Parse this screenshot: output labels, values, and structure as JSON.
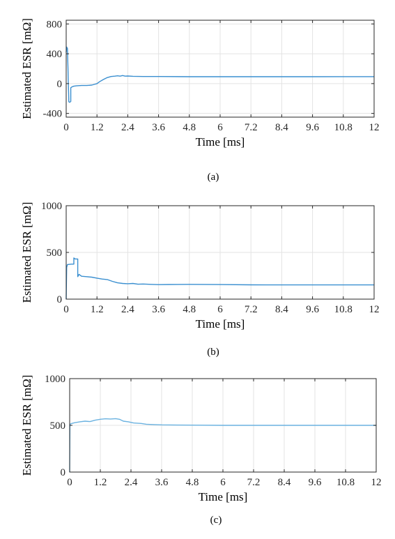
{
  "chart_data": [
    {
      "type": "line",
      "caption": "(a)",
      "xlabel": "Time [ms]",
      "ylabel": "Estimated ESR [mΩ]",
      "xlim": [
        0,
        12
      ],
      "ylim": [
        -450,
        850
      ],
      "xticks": [
        0,
        1.2,
        2.4,
        3.6,
        4.8,
        6,
        7.2,
        8.4,
        9.6,
        10.8,
        12
      ],
      "xtick_labels": [
        "0",
        "1.2",
        "2.4",
        "3.6",
        "4.8",
        "6",
        "7.2",
        "8.4",
        "9.6",
        "10.8",
        "12"
      ],
      "yticks": [
        -400,
        0,
        400,
        800
      ],
      "ytick_labels": [
        "-400",
        "0",
        "400",
        "800"
      ],
      "grid": true,
      "series": [
        {
          "color": "#3a8fd0",
          "x": [
            0,
            0.02,
            0.05,
            0.07,
            0.08,
            0.1,
            0.1,
            0.12,
            0.14,
            0.18,
            0.18,
            0.22,
            0.25,
            0.3,
            0.4,
            0.6,
            0.8,
            1.0,
            1.1,
            1.2,
            1.3,
            1.45,
            1.6,
            1.75,
            1.9,
            2.0,
            2.1,
            2.2,
            2.3,
            2.4,
            2.6,
            3.0,
            3.6,
            4.8,
            6,
            7.2,
            8.4,
            9.6,
            10.8,
            12
          ],
          "y": [
            420,
            490,
            470,
            200,
            60,
            -200,
            -240,
            -250,
            -250,
            -240,
            -55,
            -45,
            -40,
            -35,
            -30,
            -25,
            -25,
            -20,
            -10,
            0,
            25,
            55,
            80,
            95,
            100,
            105,
            100,
            108,
            100,
            102,
            98,
            95,
            95,
            92,
            92,
            92,
            92,
            92,
            93,
            93
          ]
        }
      ]
    },
    {
      "type": "line",
      "caption": "(b)",
      "xlabel": "Time [ms]",
      "ylabel": "Estimated ESR [mΩ]",
      "xlim": [
        0,
        12
      ],
      "ylim": [
        0,
        1000
      ],
      "xticks": [
        0,
        1.2,
        2.4,
        3.6,
        4.8,
        6,
        7.2,
        8.4,
        9.6,
        10.8,
        12
      ],
      "xtick_labels": [
        "0",
        "1.2",
        "2.4",
        "3.6",
        "4.8",
        "6",
        "7.2",
        "8.4",
        "9.6",
        "10.8",
        "12"
      ],
      "yticks": [
        0,
        500,
        1000
      ],
      "ytick_labels": [
        "0",
        "500",
        "1000"
      ],
      "grid": true,
      "series": [
        {
          "color": "#3a8fd0",
          "x": [
            0,
            0.02,
            0.05,
            0.2,
            0.3,
            0.3,
            0.35,
            0.45,
            0.45,
            0.5,
            0.55,
            0.6,
            0.8,
            1.0,
            1.2,
            1.4,
            1.6,
            1.8,
            2.0,
            2.2,
            2.4,
            2.6,
            2.8,
            3.0,
            3.3,
            3.6,
            4.0,
            4.8,
            6,
            7.2,
            8.4,
            9.6,
            10.8,
            12
          ],
          "y": [
            0,
            340,
            370,
            375,
            375,
            440,
            430,
            430,
            240,
            265,
            255,
            245,
            240,
            235,
            225,
            215,
            210,
            190,
            175,
            168,
            165,
            168,
            160,
            162,
            158,
            155,
            157,
            158,
            156,
            153,
            152,
            152,
            152,
            152
          ]
        }
      ]
    },
    {
      "type": "line",
      "caption": "(c)",
      "xlabel": "Time [ms]",
      "ylabel": "Estimated ESR [mΩ]",
      "xlim": [
        0,
        12
      ],
      "ylim": [
        0,
        1000
      ],
      "xticks": [
        0,
        1.2,
        2.4,
        3.6,
        4.8,
        6,
        7.2,
        8.4,
        9.6,
        10.8,
        12
      ],
      "xtick_labels": [
        "0",
        "1.2",
        "2.4",
        "3.6",
        "4.8",
        "6",
        "7.2",
        "8.4",
        "9.6",
        "10.8",
        "12"
      ],
      "yticks": [
        0,
        500,
        1000
      ],
      "ytick_labels": [
        "0",
        "500",
        "1000"
      ],
      "grid": true,
      "series": [
        {
          "color": "#6ab2e0",
          "x": [
            0,
            0.01,
            0.03,
            0.08,
            0.2,
            0.4,
            0.6,
            0.8,
            1.0,
            1.2,
            1.4,
            1.6,
            1.8,
            1.95,
            2.1,
            2.3,
            2.5,
            2.8,
            3.0,
            3.3,
            3.6,
            4.2,
            4.8,
            6,
            7.2,
            8.4,
            9.6,
            10.8,
            12
          ],
          "y": [
            0,
            490,
            515,
            520,
            528,
            538,
            545,
            540,
            555,
            565,
            570,
            568,
            572,
            565,
            545,
            538,
            525,
            520,
            512,
            508,
            505,
            503,
            502,
            500,
            500,
            500,
            500,
            500,
            500
          ]
        }
      ]
    }
  ]
}
